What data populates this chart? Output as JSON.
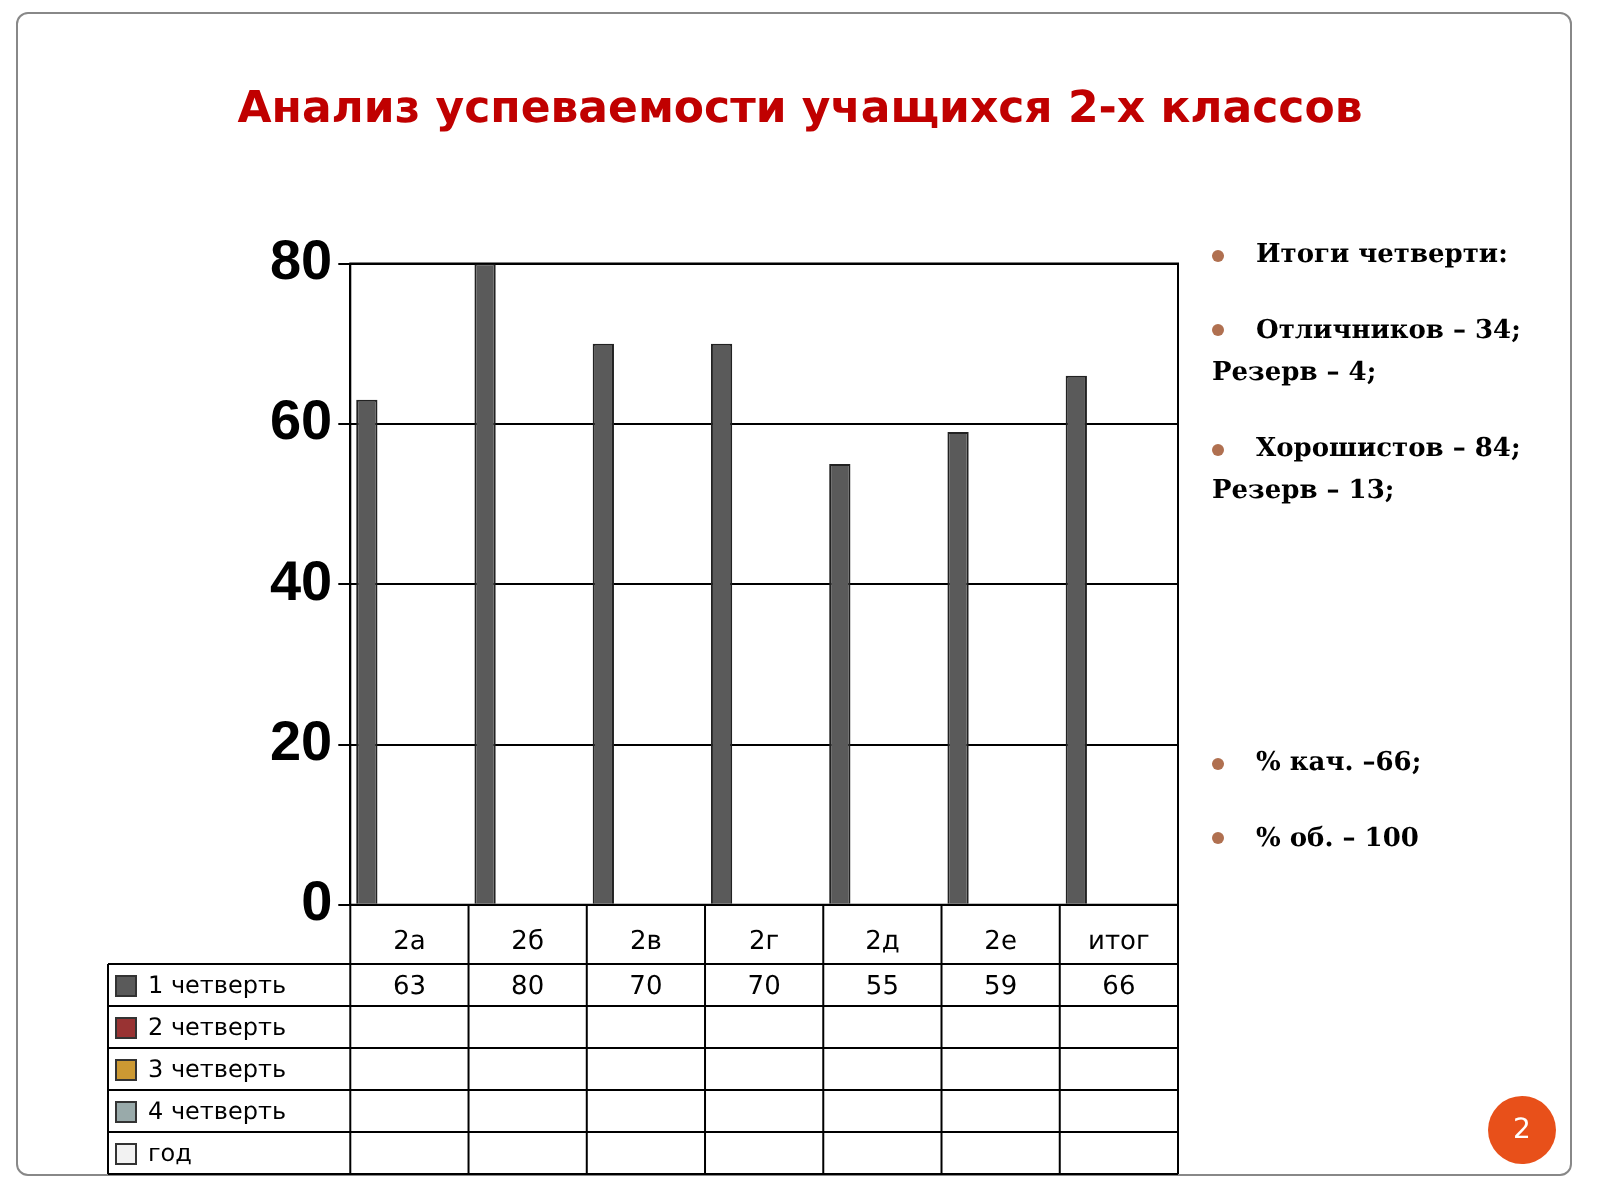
{
  "chart_data": {
    "type": "bar",
    "title": "Анализ успеваемости учащихся 2-х классов",
    "categories": [
      "2а",
      "2б",
      "2в",
      "2г",
      "2д",
      "2е",
      "итог"
    ],
    "series": [
      {
        "name": "1 четверть",
        "color": "#5a5a5a",
        "values": [
          63,
          80,
          70,
          70,
          55,
          59,
          66
        ]
      },
      {
        "name": "2 четверть",
        "color": "#993333",
        "values": [
          null,
          null,
          null,
          null,
          null,
          null,
          null
        ]
      },
      {
        "name": "3 четверть",
        "color": "#cc9933",
        "values": [
          null,
          null,
          null,
          null,
          null,
          null,
          null
        ]
      },
      {
        "name": "4 четверть",
        "color": "#99aaaa",
        "values": [
          null,
          null,
          null,
          null,
          null,
          null,
          null
        ]
      },
      {
        "name": "год",
        "color": "#f2f2f2",
        "values": [
          null,
          null,
          null,
          null,
          null,
          null,
          null
        ]
      }
    ],
    "ylim": [
      0,
      80
    ],
    "yticks": [
      0,
      20,
      40,
      60,
      80
    ],
    "grid": "y",
    "legend": "bottom",
    "data_labels": true,
    "annotations": [
      "Итоги четверти:",
      "Отличников – 34;\nРезерв – 4;",
      "Хорошистов – 84;\nРезерв – 13;",
      "% кач. –66;",
      "% об. – 100",
      "2"
    ]
  }
}
